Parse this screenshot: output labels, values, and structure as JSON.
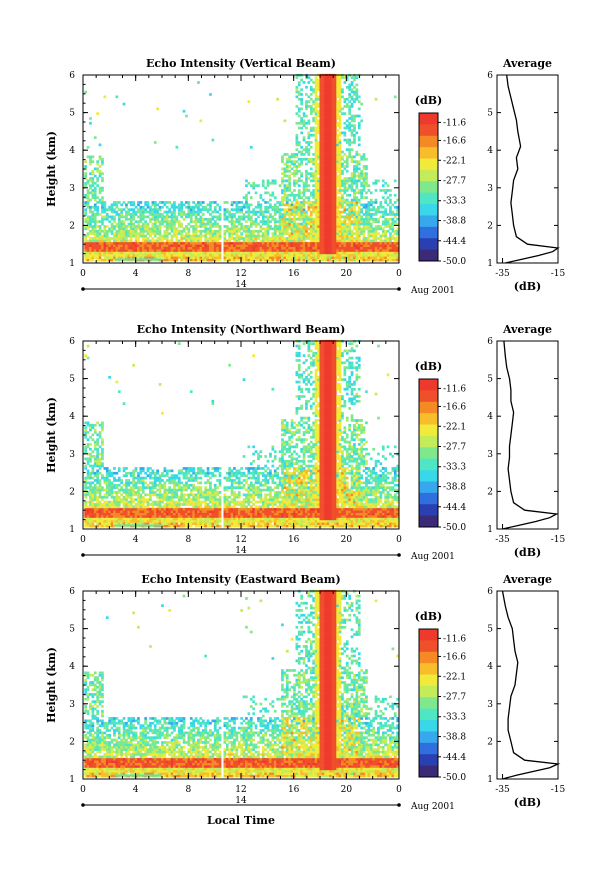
{
  "figure": {
    "xlabel": "Local Time",
    "date_note": "Aug 2001",
    "day_label": "14",
    "colorbar_unit": "(dB)",
    "profile_title": "Average",
    "profile_xlabel": "(dB)"
  },
  "chart_data": [
    {
      "type": "heatmap",
      "title": "Echo Intensity (Vertical Beam)",
      "ylabel": "Height (km)",
      "x_ticks": [
        "0",
        "4",
        "8",
        "12",
        "16",
        "20",
        "0"
      ],
      "x_range_hours": [
        0,
        24
      ],
      "y_ticks": [
        "1",
        "2",
        "3",
        "4",
        "5",
        "6"
      ],
      "ylim_km": [
        1,
        6
      ],
      "colorbar_ticks": [
        "-11.6",
        "-16.6",
        "-22.1",
        "-27.7",
        "-33.3",
        "-38.8",
        "-44.4",
        "-50.0"
      ],
      "colorbar_range_db": [
        -50.0,
        -9.0
      ],
      "profile": {
        "x_ticks": [
          "-35",
          "-15"
        ],
        "xlim_db": [
          -37,
          -15
        ],
        "heights_km": [
          1.0,
          1.1,
          1.2,
          1.3,
          1.4,
          1.5,
          1.7,
          2.0,
          2.3,
          2.6,
          2.9,
          3.2,
          3.5,
          3.8,
          4.1,
          4.3,
          4.5,
          4.8,
          5.1,
          5.4,
          5.7,
          6.0
        ],
        "values_db": [
          -34,
          -28,
          -22,
          -17,
          -15,
          -26,
          -30,
          -31,
          -31.5,
          -32,
          -31.5,
          -31,
          -29.5,
          -30,
          -28.5,
          -29,
          -29.5,
          -30,
          -31,
          -32,
          -33,
          -33.5
        ]
      }
    },
    {
      "type": "heatmap",
      "title": "Echo Intensity (Northward Beam)",
      "ylabel": "Height (km)",
      "x_ticks": [
        "0",
        "4",
        "8",
        "12",
        "16",
        "20",
        "0"
      ],
      "x_range_hours": [
        0,
        24
      ],
      "y_ticks": [
        "1",
        "2",
        "3",
        "4",
        "5",
        "6"
      ],
      "ylim_km": [
        1,
        6
      ],
      "colorbar_ticks": [
        "-11.6",
        "-16.6",
        "-22.1",
        "-27.7",
        "-33.3",
        "-38.8",
        "-44.4",
        "-50.0"
      ],
      "colorbar_range_db": [
        -50.0,
        -9.0
      ],
      "profile": {
        "x_ticks": [
          "-35",
          "-15"
        ],
        "xlim_db": [
          -37,
          -15
        ],
        "heights_km": [
          1.0,
          1.1,
          1.2,
          1.3,
          1.4,
          1.5,
          1.7,
          2.0,
          2.3,
          2.6,
          2.9,
          3.2,
          3.5,
          3.8,
          4.1,
          4.4,
          4.7,
          5.0,
          5.3,
          5.6,
          6.0
        ],
        "values_db": [
          -35,
          -29,
          -23,
          -18,
          -15.5,
          -27,
          -31,
          -32,
          -32.5,
          -33,
          -32.5,
          -32.5,
          -32,
          -31.5,
          -31,
          -32,
          -32,
          -32.5,
          -33.5,
          -34,
          -34.5
        ]
      }
    },
    {
      "type": "heatmap",
      "title": "Echo Intensity (Eastward Beam)",
      "ylabel": "Height (km)",
      "x_ticks": [
        "0",
        "4",
        "8",
        "12",
        "16",
        "20",
        "0"
      ],
      "x_range_hours": [
        0,
        24
      ],
      "y_ticks": [
        "1",
        "2",
        "3",
        "4",
        "5",
        "6"
      ],
      "ylim_km": [
        1,
        6
      ],
      "colorbar_ticks": [
        "-11.6",
        "-16.6",
        "-22.1",
        "-27.7",
        "-33.3",
        "-38.8",
        "-44.4",
        "-50.0"
      ],
      "colorbar_range_db": [
        -50.0,
        -9.0
      ],
      "profile": {
        "x_ticks": [
          "-35",
          "-15"
        ],
        "xlim_db": [
          -37,
          -15
        ],
        "heights_km": [
          1.0,
          1.1,
          1.2,
          1.3,
          1.4,
          1.5,
          1.7,
          2.0,
          2.3,
          2.6,
          2.9,
          3.2,
          3.5,
          3.8,
          4.1,
          4.4,
          4.7,
          5.0,
          5.3,
          5.6,
          6.0
        ],
        "values_db": [
          -35,
          -30,
          -24,
          -18,
          -15,
          -27,
          -31,
          -32,
          -33,
          -33,
          -32.5,
          -32,
          -30.5,
          -30,
          -29.5,
          -30.5,
          -31,
          -31.5,
          -33,
          -34,
          -35
        ]
      }
    }
  ],
  "colors": {
    "stops": [
      "#3a2a78",
      "#2a3fb0",
      "#2f6fe0",
      "#38a8ee",
      "#39d8e8",
      "#4fe6c3",
      "#7fe88d",
      "#c2ec5a",
      "#f2ea3a",
      "#f8bd2a",
      "#f58a24",
      "#ef4f2a",
      "#ee3a2c"
    ]
  }
}
